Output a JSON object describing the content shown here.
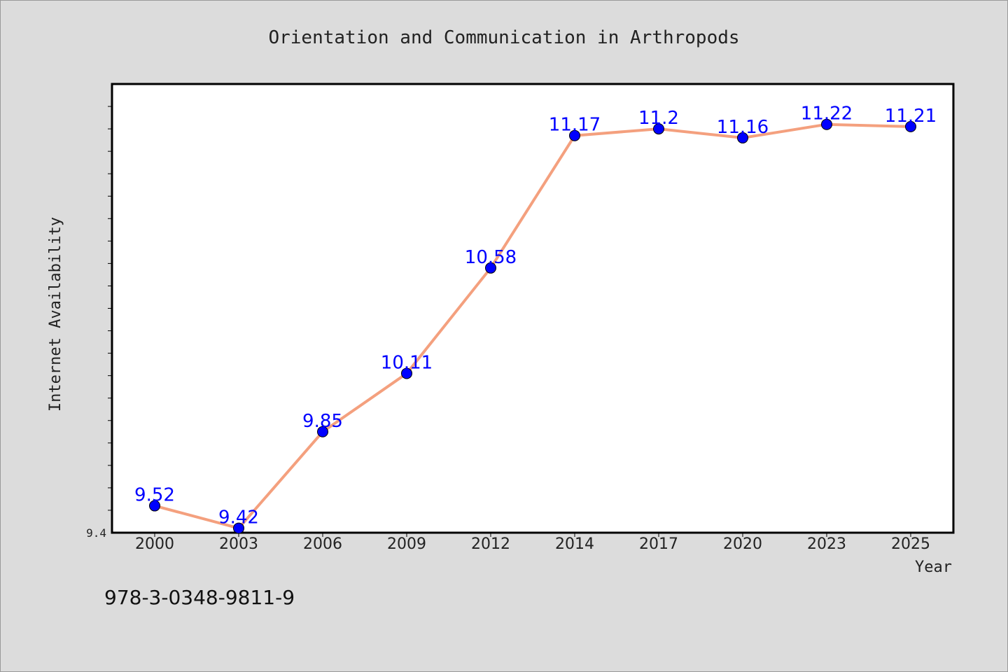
{
  "chart_data": {
    "type": "line",
    "title": "Orientation and Communication in Arthropods",
    "xlabel": "Year",
    "ylabel": "Internet Availability",
    "categories": [
      "2000",
      "2003",
      "2006",
      "2009",
      "2012",
      "2014",
      "2017",
      "2020",
      "2023",
      "2025"
    ],
    "series": [
      {
        "values": [
          9.52,
          9.42,
          9.85,
          10.11,
          10.58,
          11.17,
          11.2,
          11.16,
          11.22,
          11.21
        ],
        "data_labels": [
          "9.52",
          "9.42",
          "9.85",
          "10.11",
          "10.58",
          "11.17",
          "11.2",
          "11.16",
          "11.22",
          "11.21"
        ],
        "line_color": "#f4a07e",
        "marker_color": "#0000ff"
      }
    ],
    "ylim": [
      9.4,
      11.4
    ],
    "yticks": [
      "9.4"
    ],
    "grid": false,
    "legend": "none"
  },
  "footer": {
    "isbn": "978-3-0348-9811-9"
  },
  "colors": {
    "background": "#dcdcdc",
    "plot_background": "#ffffff",
    "label_color": "#0000ff"
  }
}
